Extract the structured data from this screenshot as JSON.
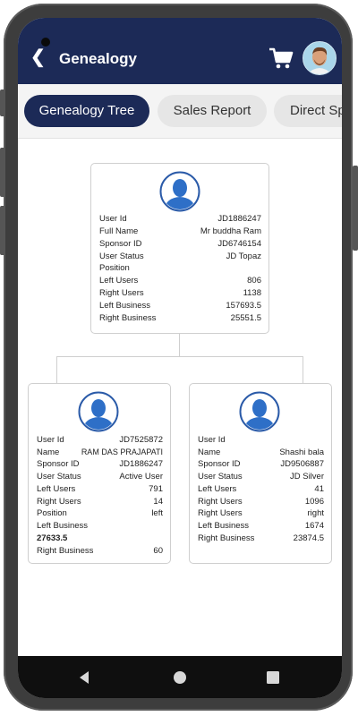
{
  "header": {
    "title": "Genealogy",
    "back_icon": "back-arrow-icon",
    "cart_icon": "cart-icon",
    "accent": "#1c2a57"
  },
  "tabs": [
    {
      "label": "Genealogy Tree",
      "active": true
    },
    {
      "label": "Sales Report",
      "active": false
    },
    {
      "label": "Direct Sp",
      "active": false
    }
  ],
  "tree": {
    "root": {
      "fields": [
        {
          "k": "User Id",
          "v": "JD1886247"
        },
        {
          "k": "Full Name",
          "v": "Mr buddha Ram"
        },
        {
          "k": "Sponsor ID",
          "v": "JD6746154"
        },
        {
          "k": "User Status",
          "v": "JD Topaz"
        },
        {
          "k": "Position",
          "v": ""
        },
        {
          "k": "Left Users",
          "v": "806"
        },
        {
          "k": "Right Users",
          "v": "1138"
        },
        {
          "k": "Left Business",
          "v": "157693.5"
        },
        {
          "k": "Right Business",
          "v": "25551.5"
        }
      ]
    },
    "left": {
      "fields": [
        {
          "k": "User Id",
          "v": "JD7525872"
        },
        {
          "k": "Name",
          "v": "RAM DAS PRAJAPATI"
        },
        {
          "k": "Sponsor ID",
          "v": "JD1886247"
        },
        {
          "k": "User Status",
          "v": "Active User"
        },
        {
          "k": "Left Users",
          "v": "791"
        },
        {
          "k": "Right Users",
          "v": "14"
        },
        {
          "k": "Position",
          "v": "left"
        },
        {
          "k": "Left Business",
          "v": ""
        },
        {
          "k": "27633.5",
          "v": ""
        },
        {
          "k": "Right Business",
          "v": "60"
        }
      ]
    },
    "right": {
      "fields": [
        {
          "k": "User Id",
          "v": ""
        },
        {
          "k": "Name",
          "v": "Shashi bala"
        },
        {
          "k": "Sponsor ID",
          "v": "JD9506887"
        },
        {
          "k": "User Status",
          "v": "JD Silver"
        },
        {
          "k": "Left Users",
          "v": "41"
        },
        {
          "k": "Right Users",
          "v": "1096"
        },
        {
          "k": "Right Users",
          "v": "right"
        },
        {
          "k": "Left Business",
          "v": "1674"
        },
        {
          "k": "Right Business",
          "v": "23874.5"
        }
      ]
    }
  },
  "navbar": {
    "back_icon": "nav-back-icon",
    "home_icon": "nav-home-icon",
    "recent_icon": "nav-recent-icon"
  }
}
